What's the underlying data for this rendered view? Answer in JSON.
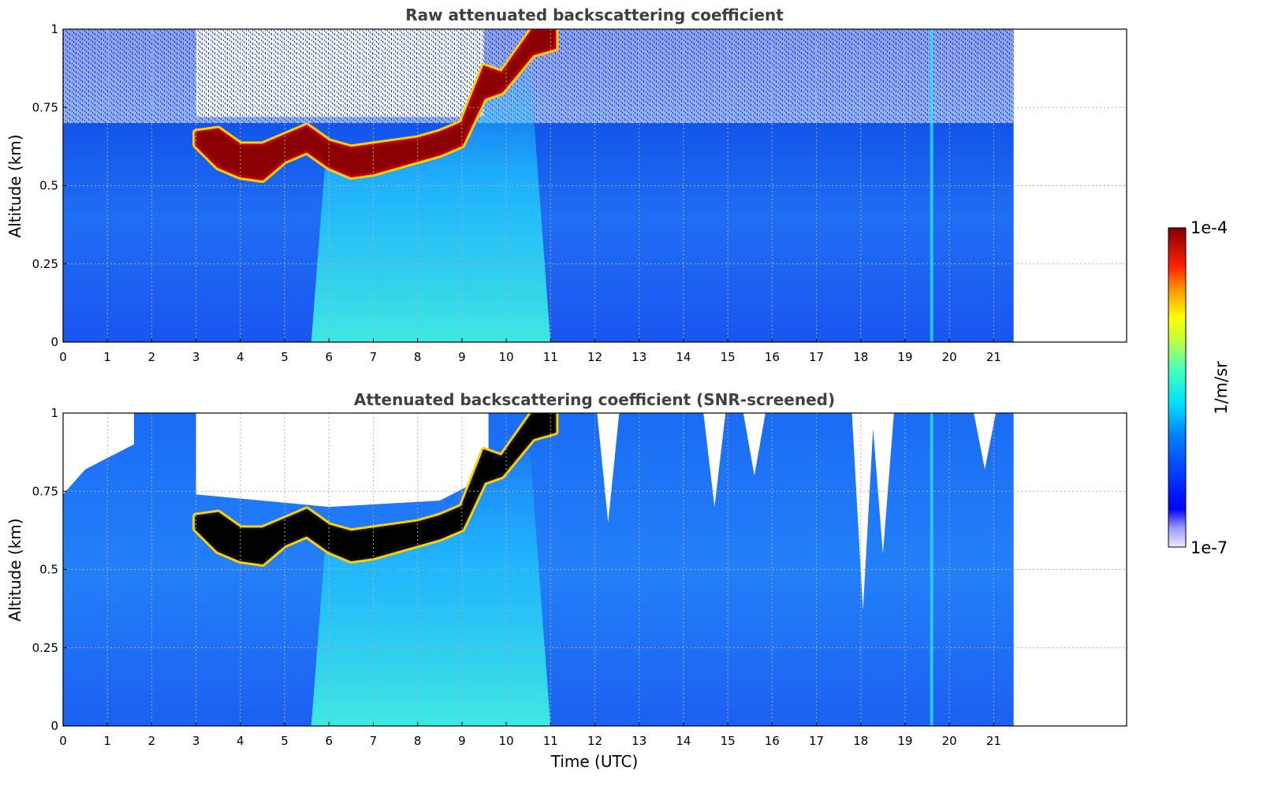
{
  "chart_data": [
    {
      "type": "heatmap",
      "title": "Raw attenuated backscattering coefficient",
      "xlabel": "",
      "ylabel": "Altitude (km)",
      "xlim": [
        0,
        24
      ],
      "ylim": [
        0,
        1
      ],
      "xticks": [
        0,
        1,
        2,
        3,
        4,
        5,
        6,
        7,
        8,
        9,
        10,
        11,
        12,
        13,
        14,
        15,
        16,
        17,
        18,
        19,
        20,
        21
      ],
      "yticks": [
        0,
        0.25,
        0.5,
        0.75,
        1
      ],
      "ytick_labels": [
        "0",
        "0.25",
        "0.5",
        "0.75",
        "1"
      ],
      "grid": true,
      "data_end_hour": 21.45,
      "cloud_base_km": [
        {
          "t": 3.0,
          "base": 0.63,
          "top": 0.67
        },
        {
          "t": 3.5,
          "base": 0.56,
          "top": 0.68
        },
        {
          "t": 4.0,
          "base": 0.53,
          "top": 0.63
        },
        {
          "t": 4.5,
          "base": 0.52,
          "top": 0.63
        },
        {
          "t": 5.0,
          "base": 0.58,
          "top": 0.66
        },
        {
          "t": 5.5,
          "base": 0.61,
          "top": 0.69
        },
        {
          "t": 6.0,
          "base": 0.56,
          "top": 0.64
        },
        {
          "t": 6.5,
          "base": 0.53,
          "top": 0.62
        },
        {
          "t": 7.0,
          "base": 0.54,
          "top": 0.63
        },
        {
          "t": 7.5,
          "base": 0.56,
          "top": 0.64
        },
        {
          "t": 8.0,
          "base": 0.58,
          "top": 0.65
        },
        {
          "t": 8.5,
          "base": 0.6,
          "top": 0.67
        },
        {
          "t": 9.0,
          "base": 0.63,
          "top": 0.7
        },
        {
          "t": 9.5,
          "base": 0.78,
          "top": 0.88
        },
        {
          "t": 9.9,
          "base": 0.8,
          "top": 0.86
        },
        {
          "t": 10.6,
          "base": 0.92,
          "top": 1.0
        },
        {
          "t": 11.1,
          "base": 0.94,
          "top": 1.0
        }
      ]
    },
    {
      "type": "heatmap",
      "title": "Attenuated backscattering coefficient (SNR-screened)",
      "xlabel": "Time (UTC)",
      "ylabel": "Altitude (km)",
      "xlim": [
        0,
        24
      ],
      "ylim": [
        0,
        1
      ],
      "xticks": [
        0,
        1,
        2,
        3,
        4,
        5,
        6,
        7,
        8,
        9,
        10,
        11,
        12,
        13,
        14,
        15,
        16,
        17,
        18,
        19,
        20,
        21
      ],
      "yticks": [
        0,
        0.25,
        0.5,
        0.75,
        1
      ],
      "ytick_labels": [
        "0",
        "0.25",
        "0.5",
        "0.75",
        "1"
      ],
      "grid": true,
      "data_end_hour": 21.45
    }
  ],
  "colorbar": {
    "colormap": "jet",
    "scale": "log",
    "min_label": "1e-7",
    "max_label": "1e-4",
    "label": "1/m/sr"
  }
}
